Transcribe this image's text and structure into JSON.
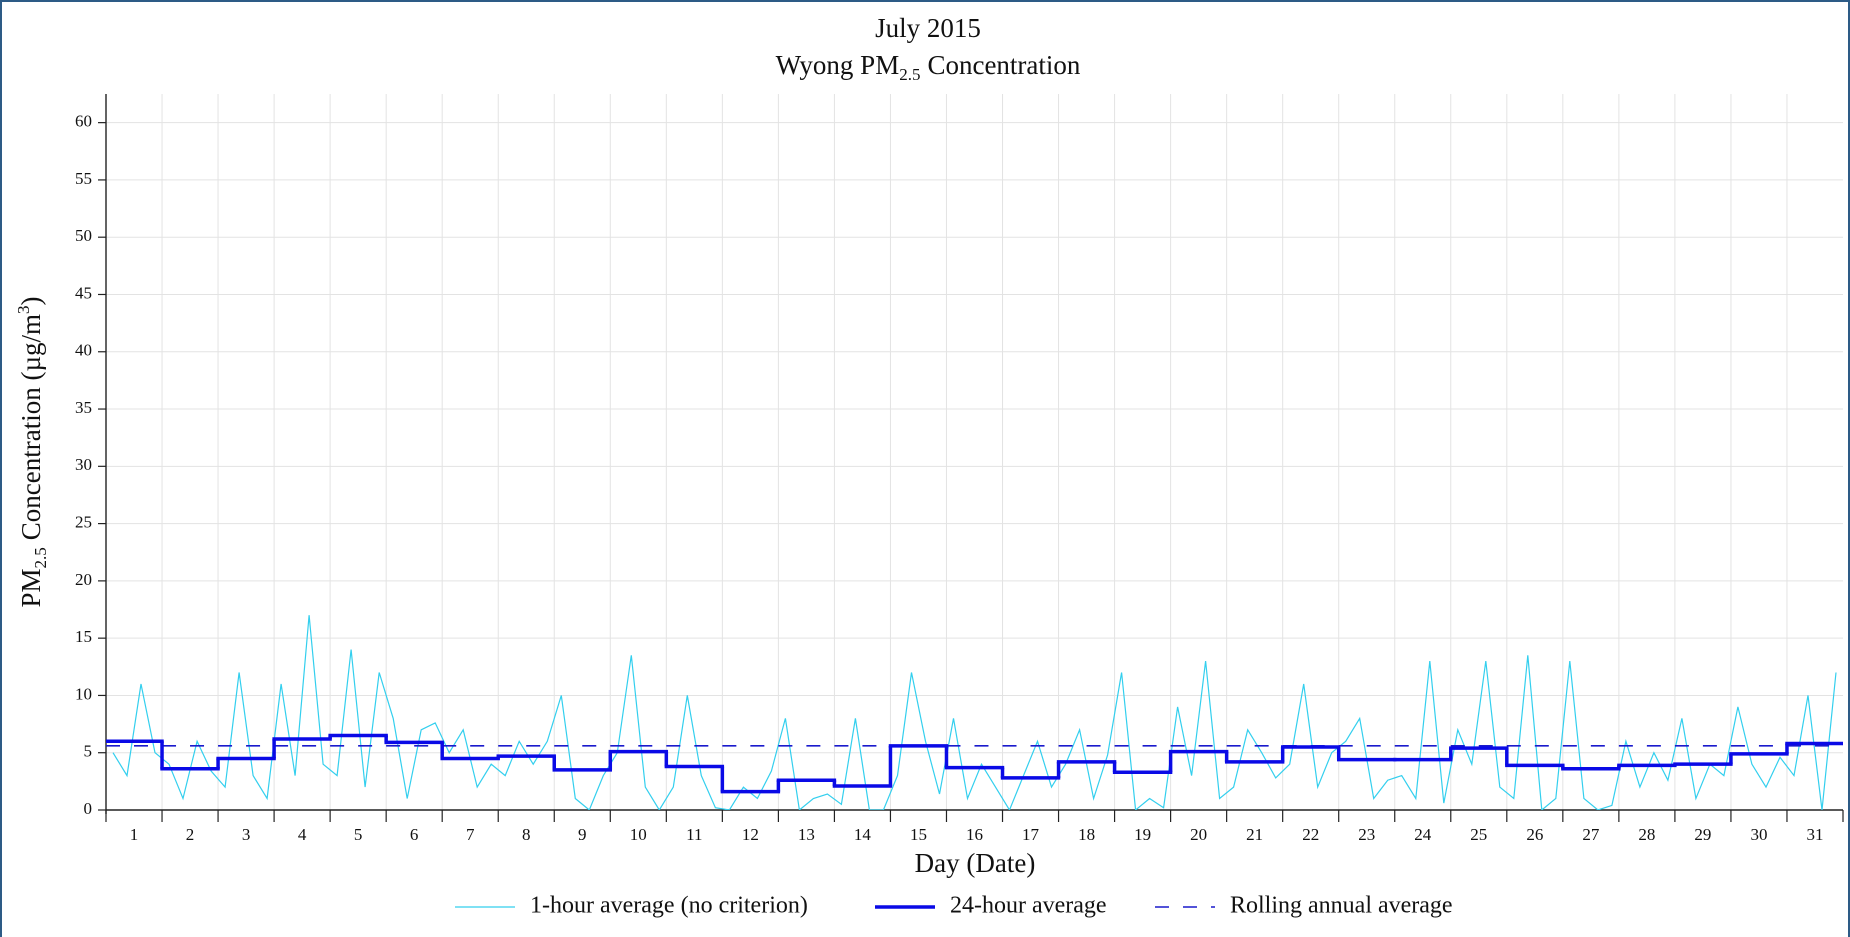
{
  "chart_data": {
    "type": "line",
    "title": "July 2015",
    "subtitle": {
      "text": "Wyong PM",
      "sub": "2.5",
      "after": "Concentration"
    },
    "ylabel": {
      "text": "PM",
      "sub": "2.5",
      "after": "Concentration (µg/m",
      "sup": "3",
      "end": ")"
    },
    "xlabel": "Day (Date)",
    "categories": [
      "1",
      "2",
      "3",
      "4",
      "5",
      "6",
      "7",
      "8",
      "9",
      "10",
      "11",
      "12",
      "13",
      "14",
      "15",
      "16",
      "17",
      "18",
      "19",
      "20",
      "21",
      "22",
      "23",
      "24",
      "25",
      "26",
      "27",
      "28",
      "29",
      "30",
      "31"
    ],
    "xlim": [
      0,
      744
    ],
    "ylim": [
      0,
      62.5
    ],
    "yticks": [
      0,
      5,
      10,
      15,
      20,
      25,
      30,
      35,
      40,
      45,
      50,
      55,
      60
    ],
    "grid": true,
    "legend": "bottom",
    "series": [
      {
        "name": "1-hour average (no criterion)",
        "color": "#33cfee",
        "x": [
          3,
          9,
          15,
          21,
          27,
          33,
          39,
          45,
          51,
          57,
          63,
          69,
          75,
          81,
          87,
          93,
          99,
          105,
          111,
          117,
          123,
          129,
          135,
          141,
          147,
          153,
          159,
          165,
          171,
          177,
          183,
          189,
          195,
          201,
          207,
          213,
          219,
          225,
          231,
          237,
          243,
          249,
          255,
          261,
          267,
          273,
          279,
          285,
          291,
          297,
          303,
          309,
          315,
          321,
          327,
          333,
          339,
          345,
          351,
          357,
          363,
          369,
          375,
          381,
          387,
          393,
          399,
          405,
          411,
          417,
          423,
          429,
          435,
          441,
          447,
          453,
          459,
          465,
          471,
          477,
          483,
          489,
          495,
          501,
          507,
          513,
          519,
          525,
          531,
          537,
          543,
          549,
          555,
          561,
          567,
          573,
          579,
          585,
          591,
          597,
          603,
          609,
          615,
          621,
          627,
          633,
          639,
          645,
          651,
          657,
          663,
          669,
          675,
          681,
          687,
          693,
          699,
          705,
          711,
          717,
          723,
          729,
          735,
          741
        ],
        "values": [
          5,
          3,
          11,
          5,
          4,
          1,
          6,
          3.4,
          2,
          12,
          3,
          1,
          11,
          3,
          17,
          4,
          3,
          14,
          2,
          12,
          8,
          1,
          7,
          7.6,
          5,
          7,
          2,
          4,
          3,
          6,
          4,
          6,
          10,
          1,
          0,
          3,
          5,
          13.5,
          2,
          0,
          2,
          10,
          3,
          0.2,
          0,
          2,
          1,
          3.4,
          8,
          0,
          1,
          1.4,
          0.5,
          8,
          0,
          0,
          3,
          12,
          6,
          1.4,
          8,
          1,
          4,
          2,
          0,
          3,
          6,
          2,
          4,
          7,
          1,
          4.8,
          12,
          0,
          1,
          0.2,
          9,
          3,
          13,
          1,
          2,
          7,
          5,
          2.8,
          4,
          11,
          2,
          5,
          6,
          8,
          1,
          2.6,
          3,
          1,
          13,
          0.6,
          7,
          4,
          13,
          2,
          1,
          13.5,
          0,
          1,
          13,
          1,
          0,
          0.4,
          6,
          2,
          5,
          2.6,
          8,
          1,
          4,
          3,
          9,
          4,
          2,
          4.6,
          3,
          10,
          0,
          12
        ]
      },
      {
        "name": "24-hour average",
        "color": "#0a0ae6",
        "values": [
          6.0,
          3.6,
          4.5,
          6.2,
          6.5,
          5.9,
          4.5,
          4.7,
          3.5,
          5.1,
          3.8,
          1.6,
          2.6,
          2.1,
          5.6,
          3.7,
          2.8,
          4.2,
          3.3,
          5.1,
          4.2,
          5.5,
          4.4,
          4.4,
          5.4,
          3.9,
          3.6,
          3.9,
          4.0,
          4.9,
          5.8
        ]
      },
      {
        "name": "Rolling annual average",
        "color": "#1a1acc",
        "values": [
          5.6,
          5.6,
          5.6,
          5.6,
          5.6,
          5.6,
          5.6,
          5.6,
          5.6,
          5.6,
          5.6,
          5.6,
          5.6,
          5.6,
          5.6,
          5.6,
          5.6,
          5.6,
          5.6,
          5.6,
          5.6,
          5.6,
          5.6,
          5.6,
          5.6,
          5.6,
          5.6,
          5.6,
          5.6,
          5.6,
          5.6
        ]
      }
    ]
  }
}
